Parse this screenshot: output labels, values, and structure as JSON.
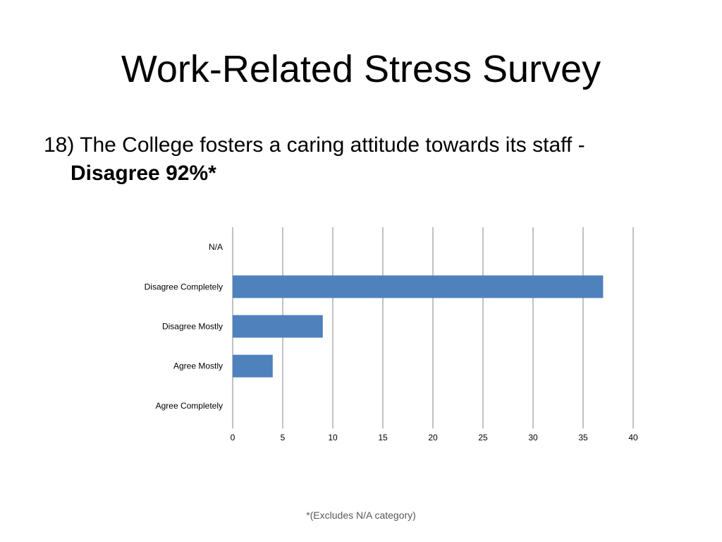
{
  "slide": {
    "title": "Work-Related Stress Survey",
    "question_line1": "18) The College fosters a caring attitude towards its staff -",
    "question_line2": "Disagree 92%*",
    "footnote": "*(Excludes N/A category)"
  },
  "chart_data": {
    "type": "bar",
    "orientation": "horizontal",
    "categories": [
      "N/A",
      "Disagree Completely",
      "Disagree Mostly",
      "Agree Mostly",
      "Agree Completely"
    ],
    "values": [
      0,
      37,
      9,
      4,
      0
    ],
    "xlim": [
      0,
      40
    ],
    "xticks": [
      0,
      5,
      10,
      15,
      20,
      25,
      30,
      35,
      40
    ],
    "grid": "vertical",
    "legend": "none",
    "bar_color": "#4F81BD"
  }
}
